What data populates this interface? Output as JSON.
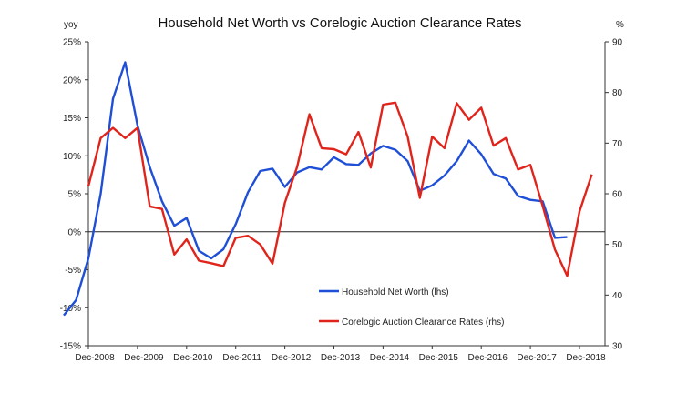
{
  "chart_data": {
    "type": "line",
    "title": "Household Net Worth vs Corelogic Auction Clearance Rates",
    "left_unit": "yoy",
    "right_unit": "%",
    "x_tick_labels": [
      "Dec-2008",
      "Dec-2009",
      "Dec-2010",
      "Dec-2011",
      "Dec-2012",
      "Dec-2013",
      "Dec-2014",
      "Dec-2015",
      "Dec-2016",
      "Dec-2017",
      "Dec-2018"
    ],
    "y_left": {
      "min": -15,
      "max": 25,
      "step": 5,
      "tick_labels": [
        "25%",
        "20%",
        "15%",
        "10%",
        "5%",
        "0%",
        "-5%",
        "-10%",
        "-15%"
      ]
    },
    "y_right": {
      "min": 30,
      "max": 90,
      "step": 10,
      "tick_labels": [
        "90",
        "80",
        "70",
        "60",
        "50",
        "40",
        "30"
      ]
    },
    "grid": false,
    "legend_position": "lower-center",
    "series": [
      {
        "name": "Household Net Worth (lhs)",
        "axis": "left",
        "color": "#1f4fd6",
        "x": [
          "Jun-2008",
          "Sep-2008",
          "Dec-2008",
          "Mar-2009",
          "Jun-2009",
          "Sep-2009",
          "Dec-2009",
          "Mar-2010",
          "Jun-2010",
          "Sep-2010",
          "Dec-2010",
          "Mar-2011",
          "Jun-2011",
          "Sep-2011",
          "Dec-2011",
          "Mar-2012",
          "Jun-2012",
          "Sep-2012",
          "Dec-2012",
          "Mar-2013",
          "Jun-2013",
          "Sep-2013",
          "Dec-2013",
          "Mar-2014",
          "Jun-2014",
          "Sep-2014",
          "Dec-2014",
          "Mar-2015",
          "Jun-2015",
          "Sep-2015",
          "Dec-2015",
          "Mar-2016",
          "Jun-2016",
          "Sep-2016",
          "Dec-2016",
          "Mar-2017",
          "Jun-2017",
          "Sep-2017",
          "Dec-2017",
          "Mar-2018",
          "Jun-2018",
          "Sep-2018",
          "Dec-2018",
          "Mar-2019"
        ],
        "values": [
          -11,
          -9,
          -3.5,
          5,
          17.5,
          22.3,
          14,
          8.5,
          4,
          0.8,
          1.8,
          -2.5,
          -3.5,
          -2.3,
          1,
          5.2,
          8,
          8.3,
          5.9,
          7.8,
          8.5,
          8.2,
          9.8,
          8.9,
          8.8,
          10.3,
          11.3,
          10.8,
          9.3,
          5.4,
          6.1,
          7.4,
          9.3,
          12,
          10.2,
          7.6,
          7,
          4.7,
          4.2,
          4,
          -0.8,
          -0.7,
          null,
          null
        ]
      },
      {
        "name": "Corelogic Auction Clearance Rates (rhs)",
        "axis": "right",
        "color": "#e0241b",
        "x": [
          "Jun-2008",
          "Sep-2008",
          "Dec-2008",
          "Mar-2009",
          "Jun-2009",
          "Sep-2009",
          "Dec-2009",
          "Mar-2010",
          "Jun-2010",
          "Sep-2010",
          "Dec-2010",
          "Mar-2011",
          "Jun-2011",
          "Sep-2011",
          "Dec-2011",
          "Mar-2012",
          "Jun-2012",
          "Sep-2012",
          "Dec-2012",
          "Mar-2013",
          "Jun-2013",
          "Sep-2013",
          "Dec-2013",
          "Mar-2014",
          "Jun-2014",
          "Sep-2014",
          "Dec-2014",
          "Mar-2015",
          "Jun-2015",
          "Sep-2015",
          "Dec-2015",
          "Mar-2016",
          "Jun-2016",
          "Sep-2016",
          "Dec-2016",
          "Mar-2017",
          "Jun-2017",
          "Sep-2017",
          "Dec-2017",
          "Mar-2018",
          "Jun-2018",
          "Sep-2018",
          "Dec-2018",
          "Mar-2019"
        ],
        "values": [
          null,
          null,
          61.5,
          71,
          73,
          71,
          73,
          57.5,
          57,
          48,
          51,
          46.8,
          46.3,
          45.7,
          51.3,
          51.7,
          50,
          46.2,
          58.2,
          65.3,
          75.7,
          69,
          68.8,
          67.8,
          72.2,
          65.2,
          77.6,
          78,
          71.3,
          59.2,
          71.3,
          69,
          77.9,
          74.6,
          77,
          69.5,
          71,
          64.8,
          65.7,
          57.6,
          49,
          43.8,
          56.5,
          63.8
        ]
      }
    ]
  }
}
